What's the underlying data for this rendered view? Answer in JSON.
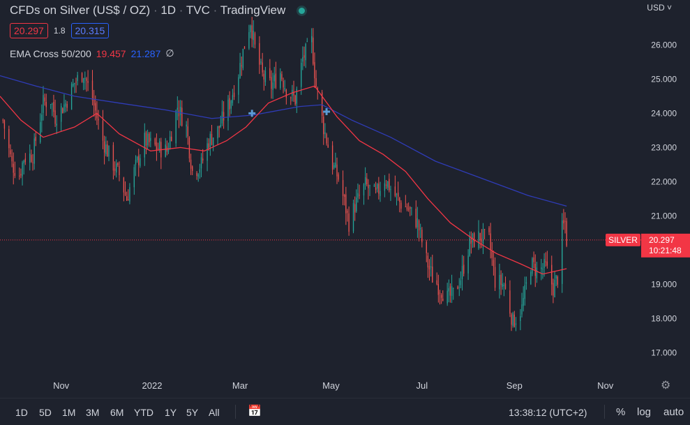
{
  "header": {
    "title_parts": [
      "CFDs on Silver (US$ / OZ)",
      "1D",
      "TVC",
      "TradingView"
    ],
    "status_color": "#26a69a"
  },
  "quote": {
    "bid": "20.297",
    "spread": "1.8",
    "ask": "20.315"
  },
  "indicator": {
    "name": "EMA Cross 50/200",
    "ema50": "19.457",
    "ema200": "21.287",
    "symbol": "∅"
  },
  "axis": {
    "currency": "USD"
  },
  "last_price": {
    "symbol": "SILVER",
    "value": "20.297",
    "countdown": "10:21:48"
  },
  "range_buttons": [
    "1D",
    "5D",
    "1M",
    "3M",
    "6M",
    "YTD",
    "1Y",
    "5Y",
    "All"
  ],
  "footer": {
    "time": "13:38:12 (UTC+2)",
    "percent": "%",
    "log": "log",
    "auto": "auto"
  },
  "colors": {
    "up": "#26a69a",
    "down": "#ef5350",
    "ema50": "#f23645",
    "ema200": "#2f3cb8",
    "cross": "#5b9bd5"
  },
  "chart_data": {
    "type": "candlestick",
    "ylim": [
      16.6,
      27.1
    ],
    "y_ticks": [
      "17.000",
      "18.000",
      "19.000",
      "20.000",
      "21.000",
      "22.000",
      "23.000",
      "24.000",
      "25.000",
      "26.000"
    ],
    "x_ticks": [
      "Nov",
      "2022",
      "Mar",
      "May",
      "Jul",
      "Sep",
      "Nov"
    ],
    "xlim": [
      "2021-09-21",
      "2022-11-25"
    ],
    "x_tick_dates": [
      "2021-11-01",
      "2022-01-01",
      "2022-03-01",
      "2022-05-01",
      "2022-07-01",
      "2022-09-01",
      "2022-11-01"
    ],
    "close_path": [
      [
        "2021-09-23",
        23.8
      ],
      [
        "2021-09-29",
        22.5
      ],
      [
        "2021-10-04",
        22.2
      ],
      [
        "2021-10-07",
        22.7
      ],
      [
        "2021-10-13",
        22.8
      ],
      [
        "2021-10-20",
        24.3
      ],
      [
        "2021-10-25",
        24.4
      ],
      [
        "2021-10-28",
        23.9
      ],
      [
        "2021-11-04",
        24.3
      ],
      [
        "2021-11-10",
        24.9
      ],
      [
        "2021-11-16",
        25.2
      ],
      [
        "2021-11-22",
        24.4
      ],
      [
        "2021-11-29",
        23.2
      ],
      [
        "2021-12-06",
        22.5
      ],
      [
        "2021-12-10",
        22.2
      ],
      [
        "2021-12-15",
        21.5
      ],
      [
        "2021-12-20",
        22.3
      ],
      [
        "2021-12-27",
        23.2
      ],
      [
        "2022-01-04",
        23.0
      ],
      [
        "2022-01-11",
        22.9
      ],
      [
        "2022-01-18",
        24.2
      ],
      [
        "2022-01-24",
        23.6
      ],
      [
        "2022-01-28",
        22.3
      ],
      [
        "2022-02-03",
        22.5
      ],
      [
        "2022-02-08",
        23.2
      ],
      [
        "2022-02-14",
        23.5
      ],
      [
        "2022-02-22",
        24.3
      ],
      [
        "2022-02-28",
        25.2
      ],
      [
        "2022-03-04",
        26.0
      ],
      [
        "2022-03-08",
        26.7
      ],
      [
        "2022-03-11",
        25.9
      ],
      [
        "2022-03-16",
        25.1
      ],
      [
        "2022-03-22",
        24.8
      ],
      [
        "2022-03-28",
        25.2
      ],
      [
        "2022-04-01",
        24.7
      ],
      [
        "2022-04-07",
        24.4
      ],
      [
        "2022-04-12",
        25.6
      ],
      [
        "2022-04-18",
        26.1
      ],
      [
        "2022-04-21",
        24.8
      ],
      [
        "2022-04-26",
        23.6
      ],
      [
        "2022-05-02",
        22.5
      ],
      [
        "2022-05-06",
        22.1
      ],
      [
        "2022-05-10",
        21.4
      ],
      [
        "2022-05-13",
        20.8
      ],
      [
        "2022-05-17",
        21.3
      ],
      [
        "2022-05-24",
        21.9
      ],
      [
        "2022-05-31",
        21.6
      ],
      [
        "2022-06-06",
        22.1
      ],
      [
        "2022-06-10",
        21.8
      ],
      [
        "2022-06-16",
        21.4
      ],
      [
        "2022-06-22",
        21.2
      ],
      [
        "2022-06-28",
        20.8
      ],
      [
        "2022-07-04",
        19.7
      ],
      [
        "2022-07-08",
        19.2
      ],
      [
        "2022-07-13",
        18.9
      ],
      [
        "2022-07-18",
        18.6
      ],
      [
        "2022-07-22",
        18.7
      ],
      [
        "2022-07-27",
        19.2
      ],
      [
        "2022-08-02",
        20.2
      ],
      [
        "2022-08-09",
        20.4
      ],
      [
        "2022-08-15",
        20.3
      ],
      [
        "2022-08-19",
        19.1
      ],
      [
        "2022-08-25",
        19.0
      ],
      [
        "2022-08-31",
        17.9
      ],
      [
        "2022-09-06",
        18.3
      ],
      [
        "2022-09-12",
        19.6
      ],
      [
        "2022-09-16",
        19.4
      ],
      [
        "2022-09-22",
        19.5
      ],
      [
        "2022-09-27",
        18.9
      ],
      [
        "2022-09-30",
        19.2
      ],
      [
        "2022-10-03",
        20.6
      ],
      [
        "2022-10-05",
        20.8
      ],
      [
        "2022-10-06",
        20.297
      ]
    ],
    "ema50_path": [
      [
        "2021-09-21",
        24.5
      ],
      [
        "2021-10-05",
        23.8
      ],
      [
        "2021-10-20",
        23.3
      ],
      [
        "2021-11-10",
        23.6
      ],
      [
        "2021-11-25",
        24.0
      ],
      [
        "2021-12-10",
        23.4
      ],
      [
        "2021-12-31",
        22.9
      ],
      [
        "2022-01-20",
        23.0
      ],
      [
        "2022-02-05",
        22.9
      ],
      [
        "2022-02-20",
        23.2
      ],
      [
        "2022-03-05",
        23.6
      ],
      [
        "2022-03-20",
        24.3
      ],
      [
        "2022-04-05",
        24.6
      ],
      [
        "2022-04-20",
        24.8
      ],
      [
        "2022-05-05",
        23.9
      ],
      [
        "2022-05-20",
        23.2
      ],
      [
        "2022-06-05",
        22.8
      ],
      [
        "2022-06-20",
        22.3
      ],
      [
        "2022-07-05",
        21.5
      ],
      [
        "2022-07-20",
        20.8
      ],
      [
        "2022-08-05",
        20.3
      ],
      [
        "2022-08-20",
        19.9
      ],
      [
        "2022-09-05",
        19.6
      ],
      [
        "2022-09-20",
        19.3
      ],
      [
        "2022-10-06",
        19.457
      ]
    ],
    "ema200_path": [
      [
        "2021-09-21",
        25.1
      ],
      [
        "2021-10-15",
        24.8
      ],
      [
        "2021-11-10",
        24.5
      ],
      [
        "2021-12-10",
        24.3
      ],
      [
        "2022-01-10",
        24.1
      ],
      [
        "2022-02-10",
        23.85
      ],
      [
        "2022-03-10",
        23.95
      ],
      [
        "2022-04-10",
        24.2
      ],
      [
        "2022-04-25",
        24.25
      ],
      [
        "2022-05-15",
        23.8
      ],
      [
        "2022-06-10",
        23.3
      ],
      [
        "2022-07-10",
        22.6
      ],
      [
        "2022-08-10",
        22.1
      ],
      [
        "2022-09-10",
        21.6
      ],
      [
        "2022-10-06",
        21.287
      ]
    ],
    "crosses": [
      [
        "2022-03-09",
        24.0
      ],
      [
        "2022-04-28",
        24.05
      ]
    ],
    "last_value": 20.297
  }
}
